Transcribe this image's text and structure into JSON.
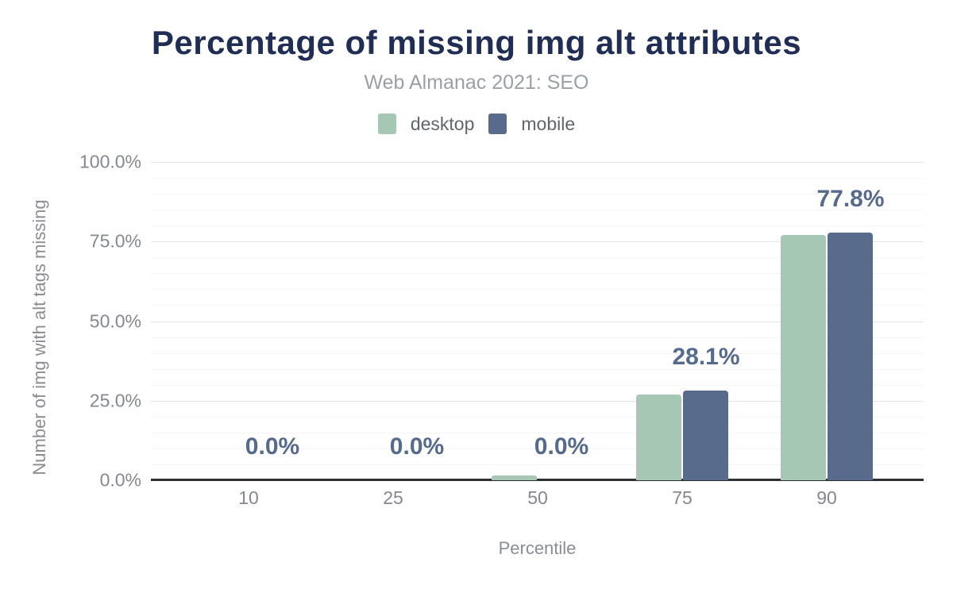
{
  "chart_data": {
    "type": "bar",
    "title": "Percentage of missing img alt attributes",
    "subtitle": "Web Almanac 2021: SEO",
    "categories": [
      "10",
      "25",
      "50",
      "75",
      "90"
    ],
    "series": [
      {
        "name": "desktop",
        "color": "#a5c7b4",
        "values": [
          0,
          0,
          1.4,
          27.0,
          77.0
        ]
      },
      {
        "name": "mobile",
        "color": "#586b8c",
        "values": [
          0,
          0,
          0,
          28.1,
          77.8
        ]
      }
    ],
    "data_labels": [
      "0.0%",
      "0.0%",
      "0.0%",
      "28.1%",
      "77.8%"
    ],
    "data_label_color": "#566a8d",
    "xlabel": "Percentile",
    "ylabel": "Number of img with alt tags missing",
    "ylim": [
      0,
      100
    ],
    "yticks": [
      {
        "value": 0,
        "label": "0.0%"
      },
      {
        "value": 25,
        "label": "25.0%"
      },
      {
        "value": 50,
        "label": "50.0%"
      },
      {
        "value": 75,
        "label": "75.0%"
      },
      {
        "value": 100,
        "label": "100.0%"
      }
    ],
    "grid": {
      "minor_step": 5,
      "major_step": 25,
      "on": true
    },
    "legend_position": "top"
  }
}
